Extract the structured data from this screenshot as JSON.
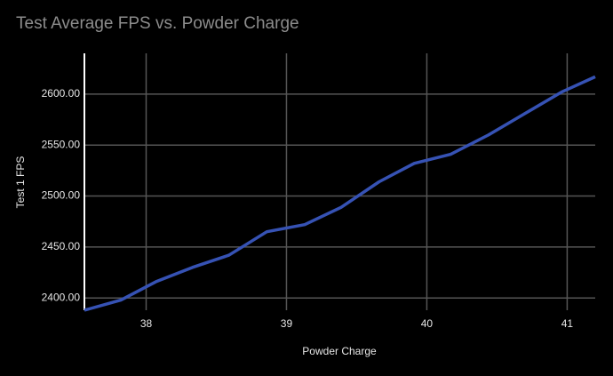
{
  "chart_data": {
    "type": "line",
    "title": "Test Average FPS vs. Powder Charge",
    "x_label": "Powder Charge",
    "y_label": "Test 1 FPS",
    "x": [
      37.56,
      37.82,
      38.07,
      38.33,
      38.59,
      38.86,
      39.13,
      39.39,
      39.66,
      39.91,
      40.17,
      40.44,
      40.7,
      40.96,
      41.2
    ],
    "series": [
      {
        "name": "Test 1 FPS",
        "color": "#3652b4",
        "values": [
          2388,
          2398,
          2416,
          2430,
          2442,
          2465,
          2472,
          2489,
          2514,
          2532,
          2541,
          2560,
          2581,
          2602,
          2617
        ]
      }
    ],
    "xlim": [
      37.56,
      41.2
    ],
    "ylim": [
      2388,
      2640
    ],
    "xticks": [
      38,
      39,
      40,
      41
    ],
    "yticks": [
      {
        "value": 2400,
        "label": "2400.00"
      },
      {
        "value": 2450,
        "label": "2450.00"
      },
      {
        "value": 2500,
        "label": "2500.00"
      },
      {
        "value": 2550,
        "label": "2550.00"
      },
      {
        "value": 2600,
        "label": "2600.00"
      }
    ],
    "grid": true
  }
}
